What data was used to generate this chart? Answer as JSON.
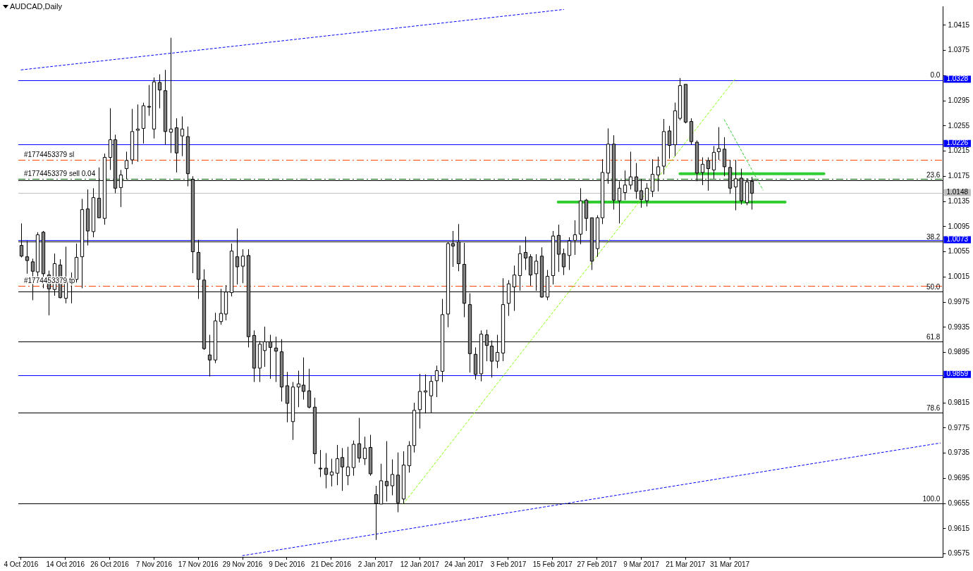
{
  "chart_data": {
    "type": "candlestick",
    "title": "AUDCAD,Daily",
    "categories": [
      "4 Oct 2016",
      null,
      null,
      null,
      null,
      null,
      null,
      null,
      "14 Oct 2016",
      null,
      null,
      null,
      null,
      null,
      null,
      null,
      "26 Oct 2016",
      null,
      null,
      null,
      null,
      null,
      null,
      null,
      "7 Nov 2016",
      null,
      null,
      null,
      null,
      null,
      null,
      null,
      "17 Nov 2016",
      null,
      null,
      null,
      null,
      null,
      null,
      null,
      "29 Nov 2016",
      null,
      null,
      null,
      null,
      null,
      null,
      null,
      "9 Dec 2016",
      null,
      null,
      null,
      null,
      null,
      null,
      null,
      "21 Dec 2016",
      null,
      null,
      null,
      null,
      null,
      null,
      null,
      "2 Jan 2017",
      null,
      null,
      null,
      null,
      null,
      null,
      null,
      "12 Jan 2017",
      null,
      null,
      null,
      null,
      null,
      null,
      null,
      "24 Jan 2017",
      null,
      null,
      null,
      null,
      null,
      null,
      null,
      "3 Feb 2017",
      null,
      null,
      null,
      null,
      null,
      null,
      null,
      "15 Feb 2017",
      null,
      null,
      null,
      null,
      null,
      null,
      null,
      "27 Feb 2017",
      null,
      null,
      null,
      null,
      null,
      null,
      null,
      "9 Mar 2017",
      null,
      null,
      null,
      null,
      null,
      null,
      null,
      "21 Mar 2017",
      null,
      null,
      null,
      null,
      null,
      null,
      null,
      "31 Mar 2017",
      null,
      null,
      null,
      null,
      null,
      null,
      null,
      null,
      null,
      null,
      null,
      null,
      null,
      null,
      null,
      null,
      null,
      null,
      null,
      null,
      null,
      null,
      null,
      null,
      null,
      null,
      null,
      null,
      null,
      null,
      null,
      null,
      null,
      null,
      null,
      null,
      null,
      null
    ],
    "ohlc": [
      [
        1.0065,
        1.01,
        1.0046,
        1.0048
      ],
      [
        1.0047,
        1.0072,
        1.002,
        1.0041
      ],
      [
        1.0039,
        1.0044,
        0.9978,
        1.0024
      ],
      [
        1.0023,
        1.0086,
        1.0009,
        1.0082
      ],
      [
        1.0086,
        1.0088,
        0.9997,
        1.002
      ],
      [
        1.0018,
        1.0025,
        0.9954,
        0.9996
      ],
      [
        0.9995,
        1.0052,
        0.9985,
        1.0036
      ],
      [
        1.0034,
        1.0043,
        0.9981,
        0.9982
      ],
      [
        0.9981,
        1.0063,
        0.9973,
        1.0009
      ],
      [
        1.0012,
        1.0022,
        0.9973,
        1.0013
      ],
      [
        1.0011,
        1.0068,
        1.0006,
        1.0046
      ],
      [
        1.0047,
        1.0139,
        0.9997,
        1.0122
      ],
      [
        1.0123,
        1.0154,
        1.0065,
        1.0088
      ],
      [
        1.0087,
        1.0156,
        1.0078,
        1.0141
      ],
      [
        1.014,
        1.0189,
        1.0109,
        1.0109
      ],
      [
        1.0108,
        1.0211,
        1.0098,
        1.0205
      ],
      [
        1.0205,
        1.0283,
        1.0185,
        1.0233
      ],
      [
        1.0233,
        1.0241,
        1.0148,
        1.0156
      ],
      [
        1.0157,
        1.0185,
        1.0126,
        1.0177
      ],
      [
        1.0187,
        1.0214,
        1.017,
        1.02
      ],
      [
        1.0201,
        1.0282,
        1.0194,
        1.0246
      ],
      [
        1.0248,
        1.0289,
        1.0198,
        1.025
      ],
      [
        1.0251,
        1.0292,
        1.0227,
        1.0287
      ],
      [
        1.0286,
        1.032,
        1.0271,
        1.0285
      ],
      [
        1.025,
        1.0332,
        1.0235,
        1.0325
      ],
      [
        1.0324,
        1.0337,
        1.0283,
        1.0312
      ],
      [
        1.0311,
        1.0344,
        1.0225,
        1.0246
      ],
      [
        1.0245,
        1.0395,
        1.0212,
        1.025
      ],
      [
        1.0252,
        1.0267,
        1.0181,
        1.0212
      ],
      [
        1.0239,
        1.027,
        1.0207,
        1.025
      ],
      [
        1.0238,
        1.0254,
        1.0159,
        1.0179
      ],
      [
        1.017,
        1.0175,
        1.0021,
        1.0055
      ],
      [
        1.0054,
        1.0074,
        0.998,
        1.0011
      ],
      [
        1.001,
        1.0027,
        0.9899,
        0.9901
      ],
      [
        0.9891,
        0.9923,
        0.9857,
        0.9883
      ],
      [
        0.9883,
        0.9958,
        0.9878,
        0.9945
      ],
      [
        0.9944,
        0.9996,
        0.9939,
        0.9957
      ],
      [
        0.9956,
        1.0002,
        0.9946,
        0.9991
      ],
      [
        0.999,
        1.0068,
        0.9984,
        1.0056
      ],
      [
        1.0047,
        1.0092,
        1.0003,
        1.0031
      ],
      [
        1.0032,
        1.0059,
        1.0005,
        1.0048
      ],
      [
        1.0049,
        1.0059,
        0.9903,
        0.992
      ],
      [
        0.9922,
        0.993,
        0.9848,
        0.987
      ],
      [
        0.987,
        0.9913,
        0.9848,
        0.9908
      ],
      [
        0.9898,
        0.9936,
        0.9872,
        0.9912
      ],
      [
        0.9912,
        0.9923,
        0.9853,
        0.9903
      ],
      [
        0.9902,
        0.992,
        0.9848,
        0.9897
      ],
      [
        0.9896,
        0.9916,
        0.9817,
        0.984
      ],
      [
        0.9842,
        0.9864,
        0.9784,
        0.9814
      ],
      [
        0.9785,
        0.9848,
        0.9756,
        0.984
      ],
      [
        0.984,
        0.9866,
        0.9808,
        0.9845
      ],
      [
        0.9843,
        0.9887,
        0.982,
        0.9833
      ],
      [
        0.9834,
        0.9869,
        0.9806,
        0.9808
      ],
      [
        0.9808,
        0.9823,
        0.9718,
        0.9734
      ],
      [
        0.9711,
        0.974,
        0.9697,
        0.971
      ],
      [
        0.9711,
        0.9735,
        0.9679,
        0.9701
      ],
      [
        0.97,
        0.9726,
        0.9682,
        0.9705
      ],
      [
        0.9703,
        0.9748,
        0.9684,
        0.9726
      ],
      [
        0.9728,
        0.9743,
        0.9675,
        0.9713
      ],
      [
        0.9699,
        0.9745,
        0.9684,
        0.9713
      ],
      [
        0.9712,
        0.9755,
        0.9699,
        0.9749
      ],
      [
        0.975,
        0.9791,
        0.972,
        0.9727
      ],
      [
        0.9726,
        0.9761,
        0.9716,
        0.9743
      ],
      [
        0.9744,
        0.9764,
        0.9699,
        0.9702
      ],
      [
        0.9669,
        0.9683,
        0.9597,
        0.9655
      ],
      [
        0.9654,
        0.9718,
        0.9654,
        0.9691
      ],
      [
        0.969,
        0.9754,
        0.9658,
        0.9683
      ],
      [
        0.9683,
        0.9725,
        0.9668,
        0.9701
      ],
      [
        0.97,
        0.9736,
        0.9641,
        0.9656
      ],
      [
        0.9662,
        0.9738,
        0.9654,
        0.9716
      ],
      [
        0.9715,
        0.9754,
        0.9704,
        0.9747
      ],
      [
        0.9747,
        0.9815,
        0.9736,
        0.9803
      ],
      [
        0.9804,
        0.9861,
        0.9774,
        0.9833
      ],
      [
        0.9832,
        0.986,
        0.9798,
        0.9834
      ],
      [
        0.9826,
        0.9858,
        0.9799,
        0.9849
      ],
      [
        0.985,
        0.9874,
        0.9824,
        0.9866
      ],
      [
        0.9865,
        0.998,
        0.9848,
        0.9955
      ],
      [
        0.9956,
        1.007,
        0.9935,
        1.0068
      ],
      [
        1.0068,
        1.0088,
        1.0031,
        1.0064
      ],
      [
        1.0071,
        1.0099,
        1.0024,
        1.0036
      ],
      [
        1.0035,
        1.0069,
        0.9951,
        0.9973
      ],
      [
        0.9971,
        0.9989,
        0.9863,
        0.9893
      ],
      [
        0.9892,
        0.9903,
        0.9852,
        0.986
      ],
      [
        0.9861,
        0.993,
        0.9849,
        0.9924
      ],
      [
        0.9923,
        0.9931,
        0.9881,
        0.9906
      ],
      [
        0.9905,
        0.9914,
        0.9855,
        0.9881
      ],
      [
        0.9881,
        0.9923,
        0.987,
        0.9895
      ],
      [
        0.9894,
        1.0013,
        0.9881,
        0.9971
      ],
      [
        0.9973,
        1.001,
        0.9953,
        1.0004
      ],
      [
        0.9999,
        1.0033,
        0.9961,
        1.0018
      ],
      [
        1.0017,
        1.0065,
        0.9993,
        1.0052
      ],
      [
        1.0054,
        1.0079,
        1.0026,
        1.0045
      ],
      [
        1.0047,
        1.0051,
        1.0001,
        1.0018
      ],
      [
        1.002,
        1.0051,
        0.9993,
        1.004
      ],
      [
        1.0048,
        1.0062,
        0.9982,
        0.9983
      ],
      [
        0.9983,
        1.0026,
        0.9978,
        1.0016
      ],
      [
        1.0017,
        1.0088,
        1.0003,
        1.008
      ],
      [
        1.0081,
        1.0098,
        1.0023,
        1.0051
      ],
      [
        1.0052,
        1.006,
        1.0018,
        1.0031
      ],
      [
        1.0049,
        1.0078,
        1.0026,
        1.0072
      ],
      [
        1.0073,
        1.0105,
        1.005,
        1.0082
      ],
      [
        1.0083,
        1.0156,
        1.0067,
        1.0136
      ],
      [
        1.0137,
        1.0139,
        1.0088,
        1.0108
      ],
      [
        1.0109,
        1.0109,
        1.0026,
        1.004
      ],
      [
        1.006,
        1.0113,
        1.0047,
        1.0109
      ],
      [
        1.0109,
        1.0202,
        1.0099,
        1.0181
      ],
      [
        1.018,
        1.0251,
        1.0163,
        1.0226
      ],
      [
        1.0226,
        1.024,
        1.0122,
        1.0137
      ],
      [
        1.0136,
        1.0167,
        1.01,
        1.0156
      ],
      [
        1.0149,
        1.0184,
        1.0137,
        1.0161
      ],
      [
        1.0161,
        1.0214,
        1.0154,
        1.0174
      ],
      [
        1.0174,
        1.0196,
        1.0139,
        1.0151
      ],
      [
        1.0152,
        1.0171,
        1.0125,
        1.0138
      ],
      [
        1.0136,
        1.0164,
        1.0127,
        1.0156
      ],
      [
        1.0151,
        1.0202,
        1.0142,
        1.0178
      ],
      [
        1.0177,
        1.0206,
        1.0151,
        1.019
      ],
      [
        1.0191,
        1.0266,
        1.0178,
        1.0246
      ],
      [
        1.0247,
        1.0255,
        1.0203,
        1.0224
      ],
      [
        1.0225,
        1.0292,
        1.0207,
        1.0279
      ],
      [
        1.0267,
        1.0331,
        1.0264,
        1.0319
      ],
      [
        1.0321,
        1.0321,
        1.0259,
        1.0261
      ],
      [
        1.0262,
        1.0267,
        1.0225,
        1.023
      ],
      [
        1.0229,
        1.0232,
        1.0167,
        1.018
      ],
      [
        1.0181,
        1.0205,
        1.0161,
        1.0194
      ],
      [
        1.02,
        1.0205,
        1.0152,
        1.0187
      ],
      [
        1.0185,
        1.0223,
        1.0171,
        1.0213
      ],
      [
        1.0214,
        1.0253,
        1.0201,
        1.0219
      ],
      [
        1.0218,
        1.0237,
        1.0175,
        1.019
      ],
      [
        1.0189,
        1.0201,
        1.0147,
        1.0156
      ],
      [
        1.0158,
        1.0201,
        1.0121,
        1.0171
      ],
      [
        1.0172,
        1.0187,
        1.013,
        1.0136
      ],
      [
        1.0133,
        1.0172,
        1.0129,
        1.0166
      ],
      [
        1.0167,
        1.0174,
        1.0122,
        1.0148
      ],
      null,
      null,
      null,
      null,
      null,
      null,
      null,
      null,
      null,
      null,
      null,
      null,
      null,
      null,
      null,
      null,
      null,
      null,
      null,
      null,
      null,
      null,
      null,
      null,
      null,
      null,
      null,
      null,
      null,
      null,
      null,
      null,
      null,
      null
    ],
    "colors": [
      "#808080",
      "#808080",
      "#808080",
      "#ffffff",
      "#808080",
      "#808080",
      "#ffffff",
      "#808080",
      "#ffffff",
      "#ffffff",
      "#ffffff",
      "#ffffff",
      "#808080",
      "#ffffff",
      "#808080",
      "#ffffff",
      "#ffffff",
      "#808080",
      "#ffffff",
      "#ffffff",
      "#ffffff",
      "#ffffff",
      "#ffffff",
      "#808080",
      "#ffffff",
      "#808080",
      "#808080",
      "#ffffff",
      "#808080",
      "#ffffff",
      "#808080",
      "#808080",
      "#808080",
      "#808080",
      "#808080",
      "#ffffff",
      "#ffffff",
      "#ffffff",
      "#ffffff",
      "#808080",
      "#ffffff",
      "#808080",
      "#808080",
      "#ffffff",
      "#ffffff",
      "#808080",
      "#808080",
      "#808080",
      "#808080",
      "#ffffff",
      "#ffffff",
      "#808080",
      "#808080",
      "#808080",
      "#808080",
      "#808080",
      "#ffffff",
      "#ffffff",
      "#808080",
      "#ffffff",
      "#ffffff",
      "#808080",
      "#ffffff",
      "#808080",
      "#808080",
      "#ffffff",
      "#808080",
      "#ffffff",
      "#808080",
      "#ffffff",
      "#ffffff",
      "#ffffff",
      "#ffffff",
      "#ffffff",
      "#ffffff",
      "#ffffff",
      "#ffffff",
      "#ffffff",
      "#808080",
      "#808080",
      "#808080",
      "#808080",
      "#808080",
      "#ffffff",
      "#808080",
      "#808080",
      "#ffffff",
      "#ffffff",
      "#ffffff",
      "#ffffff",
      "#ffffff",
      "#808080",
      "#808080",
      "#ffffff",
      "#808080",
      "#ffffff",
      "#ffffff",
      "#808080",
      "#808080",
      "#ffffff",
      "#ffffff",
      "#ffffff",
      "#808080",
      "#808080",
      "#ffffff",
      "#ffffff",
      "#ffffff",
      "#808080",
      "#ffffff",
      "#ffffff",
      "#ffffff",
      "#808080",
      "#808080",
      "#ffffff",
      "#ffffff",
      "#ffffff",
      "#ffffff",
      "#808080",
      "#ffffff",
      "#ffffff",
      "#808080",
      "#808080",
      "#808080",
      "#ffffff",
      "#808080",
      "#ffffff",
      "#ffffff",
      "#808080",
      "#808080",
      "#ffffff",
      "#808080",
      "#ffffff",
      "#808080",
      null,
      null,
      null,
      null,
      null,
      null,
      null,
      null,
      null,
      null,
      null,
      null,
      null,
      null,
      null,
      null,
      null,
      null,
      null,
      null,
      null,
      null,
      null,
      null,
      null,
      null,
      null,
      null,
      null,
      null,
      null,
      null,
      null,
      null
    ],
    "ylim": [
      0.957,
      1.0445
    ],
    "yticks": [
      0.9575,
      0.9615,
      0.9655,
      0.9695,
      0.9735,
      0.9775,
      0.9815,
      {
        "value": 0.9855,
        "label": null
      },
      0.9895,
      0.9935,
      0.9975,
      1.0015,
      1.0055,
      1.0095,
      1.0135,
      1.0175,
      1.0215,
      1.0255,
      1.0295,
      {
        "value": 1.0335,
        "label": null
      },
      1.0375,
      1.0415
    ],
    "ref_lines": [
      {
        "axis": "y",
        "value": 0.9912,
        "color": "#000000"
      },
      {
        "axis": "y",
        "value": 0.9799,
        "color": "#000000"
      },
      {
        "axis": "y",
        "value": 0.9655,
        "color": "#000000"
      },
      {
        "axis": "y",
        "value": 1.0169,
        "color": "#000000"
      },
      {
        "axis": "y",
        "value": 1.0071,
        "color": "#000000"
      },
      {
        "axis": "y",
        "value": 0.9992,
        "color": "#000000"
      },
      {
        "axis": "y",
        "value": 1.0148,
        "label": "1.0148",
        "color": "#c0c0c0"
      },
      {
        "axis": "y",
        "value": 1.0201,
        "label": "#1774453379 sl",
        "color": "#ff4500",
        "line_style": "dashed"
      },
      {
        "axis": "y",
        "value": 1.0171,
        "label": "#1774453379 sell 0.04",
        "color": "#006400",
        "line_style": "dashed"
      },
      {
        "axis": "y",
        "value": 1.0001,
        "label": "#1774453379 tp",
        "color": "#ff4500",
        "line_style": "dashed"
      },
      {
        "axis": "y",
        "value": 1.0328,
        "label": "1.0328",
        "color": "#0000ff"
      },
      {
        "axis": "y",
        "value": 1.0226,
        "label": "1.0226",
        "color": "#0000ff"
      },
      {
        "axis": "y",
        "value": 1.0073,
        "label": "1.0073",
        "color": "#0000ff"
      },
      {
        "axis": "y",
        "value": 0.9859,
        "label": "0.9859",
        "color": "#0000ff"
      }
    ],
    "annotations": [
      {
        "text": "0.0",
        "y": 1.0328
      },
      {
        "text": "23.6",
        "y": 1.0169
      },
      {
        "text": "38.2",
        "y": 1.0071
      },
      {
        "text": "50.0",
        "y": 0.9992
      },
      {
        "text": "61.8",
        "y": 0.9912
      },
      {
        "text": "78.6",
        "y": 0.9799
      },
      {
        "text": "100.0",
        "y": 0.9655
      }
    ],
    "series": [
      {
        "type": "line",
        "color": "#0000ff",
        "line_style": "dotted",
        "values": [
          1.0344,
          null,
          null,
          null,
          null,
          null,
          null,
          null,
          null,
          null,
          null,
          null,
          null,
          null,
          null,
          null,
          null,
          null,
          null,
          null,
          null,
          null,
          null,
          null,
          null,
          null,
          null,
          null,
          null,
          null,
          null,
          null,
          null,
          null,
          null,
          null,
          null,
          null,
          null,
          null,
          null,
          null,
          null,
          null,
          null,
          null,
          null,
          null,
          null,
          null,
          null,
          null,
          null,
          null,
          null,
          null,
          null,
          null,
          null,
          null,
          null,
          null,
          null,
          null,
          null,
          null,
          null,
          null,
          null,
          null,
          null,
          null,
          null,
          null,
          null,
          null,
          null,
          null,
          null,
          null,
          null,
          null,
          null,
          null,
          null,
          null,
          null,
          null,
          null,
          null,
          null,
          null,
          null,
          null,
          null,
          null,
          null,
          null,
          1.044,
          null,
          null,
          null,
          null,
          null,
          null,
          null,
          null,
          null,
          null,
          null,
          null,
          null,
          null,
          null,
          null,
          null,
          null,
          null,
          null,
          null,
          null,
          null,
          null,
          null,
          null,
          null,
          null,
          null,
          null,
          null,
          null,
          null,
          null,
          null,
          null,
          null,
          null,
          null,
          null,
          null,
          null,
          null,
          null,
          null,
          null,
          null,
          null,
          null,
          null,
          null,
          null,
          null,
          null,
          null,
          null,
          null,
          null,
          null,
          null,
          null,
          null,
          null,
          null,
          null,
          null,
          null,
          null
        ]
      },
      {
        "type": "line",
        "color": "#0000ff",
        "line_style": "dotted",
        "values": [
          null,
          null,
          null,
          null,
          null,
          null,
          null,
          null,
          null,
          null,
          null,
          null,
          null,
          null,
          null,
          null,
          null,
          null,
          null,
          null,
          null,
          null,
          null,
          null,
          null,
          null,
          null,
          null,
          null,
          null,
          null,
          null,
          null,
          null,
          null,
          null,
          null,
          null,
          null,
          null,
          0.9572,
          null,
          null,
          null,
          null,
          null,
          null,
          null,
          null,
          null,
          null,
          null,
          null,
          null,
          null,
          null,
          null,
          null,
          null,
          null,
          null,
          null,
          null,
          null,
          null,
          null,
          null,
          null,
          null,
          null,
          null,
          null,
          null,
          null,
          null,
          null,
          null,
          null,
          null,
          null,
          null,
          null,
          null,
          null,
          null,
          null,
          null,
          null,
          null,
          null,
          null,
          null,
          null,
          null,
          null,
          null,
          null,
          null,
          null,
          null,
          null,
          null,
          null,
          null,
          null,
          null,
          null,
          null,
          null,
          null,
          null,
          null,
          null,
          null,
          null,
          null,
          null,
          null,
          null,
          null,
          null,
          null,
          null,
          null,
          null,
          null,
          null,
          null,
          null,
          null,
          null,
          null,
          null,
          null,
          null,
          null,
          null,
          null,
          null,
          null,
          null,
          null,
          null,
          null,
          null,
          null,
          null,
          null,
          null,
          null,
          null,
          null,
          null,
          null,
          null,
          null,
          null,
          null,
          null,
          null,
          null,
          null,
          null,
          null,
          null,
          null,
          0.9751
        ]
      },
      {
        "type": "line",
        "color": "#7fff00",
        "line_style": "dotted",
        "values": [
          null,
          null,
          null,
          null,
          null,
          null,
          null,
          null,
          null,
          null,
          null,
          null,
          null,
          null,
          null,
          null,
          null,
          null,
          null,
          null,
          null,
          null,
          null,
          null,
          null,
          null,
          null,
          null,
          null,
          null,
          null,
          null,
          null,
          null,
          null,
          null,
          null,
          null,
          null,
          null,
          null,
          null,
          null,
          null,
          null,
          null,
          null,
          null,
          null,
          null,
          null,
          null,
          null,
          null,
          null,
          null,
          null,
          null,
          null,
          null,
          null,
          null,
          null,
          null,
          null,
          null,
          null,
          null,
          null,
          0.9654,
          null,
          null,
          null,
          null,
          null,
          null,
          null,
          null,
          null,
          null,
          null,
          null,
          null,
          null,
          null,
          null,
          null,
          null,
          null,
          null,
          null,
          null,
          null,
          null,
          null,
          null,
          null,
          null,
          null,
          null,
          null,
          null,
          null,
          null,
          null,
          null,
          null,
          null,
          null,
          null,
          null,
          null,
          null,
          null,
          null,
          null,
          null,
          null,
          null,
          null,
          null,
          null,
          null,
          null,
          null,
          null,
          null,
          null,
          null,
          1.033,
          null,
          null,
          null,
          null,
          null,
          null,
          null,
          null,
          null,
          null,
          null,
          null,
          null,
          null,
          null,
          null,
          null,
          null,
          null,
          null,
          null,
          null,
          null,
          null,
          null,
          null,
          null,
          null,
          null,
          null,
          null,
          null,
          null,
          null,
          null,
          null,
          null
        ]
      },
      {
        "type": "line",
        "color": "#32cd32",
        "line_style": "dotted",
        "values": [
          null,
          null,
          null,
          null,
          null,
          null,
          null,
          null,
          null,
          null,
          null,
          null,
          null,
          null,
          null,
          null,
          null,
          null,
          null,
          null,
          null,
          null,
          null,
          null,
          null,
          null,
          null,
          null,
          null,
          null,
          null,
          null,
          null,
          null,
          null,
          null,
          null,
          null,
          null,
          null,
          null,
          null,
          null,
          null,
          null,
          null,
          null,
          null,
          null,
          null,
          null,
          null,
          null,
          null,
          null,
          null,
          null,
          null,
          null,
          null,
          null,
          null,
          null,
          null,
          null,
          null,
          null,
          null,
          null,
          null,
          null,
          null,
          null,
          null,
          null,
          null,
          null,
          null,
          null,
          null,
          null,
          null,
          null,
          null,
          null,
          null,
          null,
          null,
          null,
          null,
          null,
          null,
          null,
          null,
          null,
          null,
          null,
          null,
          null,
          null,
          null,
          null,
          null,
          null,
          null,
          null,
          null,
          null,
          null,
          null,
          null,
          null,
          null,
          null,
          null,
          null,
          null,
          null,
          null,
          null,
          null,
          null,
          null,
          null,
          null,
          null,
          null,
          1.0265,
          null,
          null,
          null,
          null,
          null,
          null,
          1.0153,
          null,
          null,
          null,
          null,
          null,
          null,
          null,
          null,
          null,
          null,
          null,
          null,
          null,
          null,
          null,
          null,
          null,
          null,
          null,
          null,
          null,
          null,
          null,
          null,
          null,
          null,
          null,
          null,
          null,
          null,
          null,
          null
        ]
      },
      {
        "type": "line",
        "color": "#32cd32",
        "line_style": "solid",
        "values": [
          null,
          null,
          null,
          null,
          null,
          null,
          null,
          null,
          null,
          null,
          null,
          null,
          null,
          null,
          null,
          null,
          null,
          null,
          null,
          null,
          null,
          null,
          null,
          null,
          null,
          null,
          null,
          null,
          null,
          null,
          null,
          null,
          null,
          null,
          null,
          null,
          null,
          null,
          null,
          null,
          null,
          null,
          null,
          null,
          null,
          null,
          null,
          null,
          null,
          null,
          null,
          null,
          null,
          null,
          null,
          null,
          null,
          null,
          null,
          null,
          null,
          null,
          null,
          null,
          null,
          null,
          null,
          null,
          null,
          null,
          null,
          null,
          null,
          null,
          null,
          null,
          null,
          null,
          null,
          null,
          null,
          null,
          null,
          null,
          null,
          null,
          null,
          null,
          null,
          null,
          null,
          null,
          null,
          null,
          null,
          null,
          null,
          null,
          null,
          null,
          null,
          null,
          null,
          null,
          null,
          null,
          null,
          null,
          null,
          null,
          null,
          null,
          null,
          null,
          null,
          null,
          null,
          null,
          null,
          1.0179,
          null,
          null,
          null,
          null,
          null,
          null,
          null,
          null,
          null,
          null,
          null,
          null,
          null,
          null,
          null,
          null,
          null,
          null,
          null,
          null,
          null,
          null,
          null,
          null,
          null,
          1.0179,
          null,
          null,
          null,
          null,
          null,
          null,
          null,
          null,
          null,
          null,
          null,
          null,
          null,
          null,
          null,
          null,
          null,
          null,
          null,
          null,
          null
        ]
      },
      {
        "type": "line",
        "color": "#32cd32",
        "line_style": "solid",
        "values": [
          null,
          null,
          null,
          null,
          null,
          null,
          null,
          null,
          null,
          null,
          null,
          null,
          null,
          null,
          null,
          null,
          null,
          null,
          null,
          null,
          null,
          null,
          null,
          null,
          null,
          null,
          null,
          null,
          null,
          null,
          null,
          null,
          null,
          null,
          null,
          null,
          null,
          null,
          null,
          null,
          null,
          null,
          null,
          null,
          null,
          null,
          null,
          null,
          null,
          null,
          null,
          null,
          null,
          null,
          null,
          null,
          null,
          null,
          null,
          null,
          null,
          null,
          null,
          null,
          null,
          null,
          null,
          null,
          null,
          null,
          null,
          null,
          null,
          null,
          null,
          null,
          null,
          null,
          null,
          null,
          null,
          null,
          null,
          null,
          null,
          null,
          null,
          null,
          null,
          null,
          null,
          null,
          null,
          null,
          null,
          null,
          null,
          1.0134,
          null,
          null,
          null,
          null,
          null,
          null,
          null,
          null,
          null,
          null,
          null,
          null,
          null,
          null,
          null,
          null,
          null,
          null,
          null,
          null,
          null,
          null,
          null,
          null,
          null,
          null,
          null,
          null,
          null,
          null,
          null,
          null,
          null,
          null,
          null,
          null,
          null,
          null,
          null,
          null,
          1.0134,
          null,
          null,
          null,
          null,
          null,
          null,
          null,
          null,
          null,
          null,
          null,
          null,
          null,
          null,
          null,
          null,
          null,
          null,
          null,
          null,
          null,
          null,
          null,
          null,
          null,
          null,
          null,
          null
        ]
      }
    ]
  }
}
